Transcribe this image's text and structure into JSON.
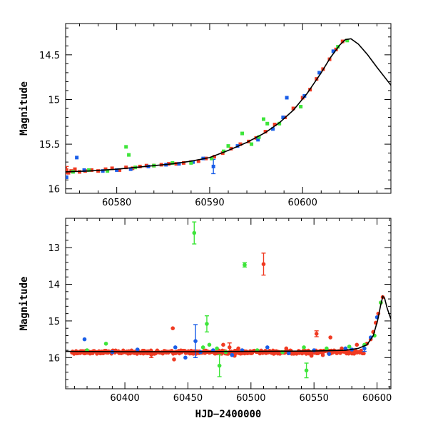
{
  "chart_data": [
    {
      "type": "scatter",
      "panel": "top",
      "xlim": [
        60574.5,
        60609.5
      ],
      "ylim": [
        16.05,
        14.15
      ],
      "y_inverted": true,
      "ylabel": "Magnitude",
      "xlabel": "",
      "xticks": [
        60580,
        60590,
        60600
      ],
      "yticks": [
        14.5,
        15,
        15.5,
        16
      ],
      "ytick_labels": [
        "14.5",
        "15",
        "15.5",
        "16"
      ],
      "colors": {
        "red": "#f03a22",
        "blue": "#1a5ee8",
        "green": "#3ee53a",
        "model": "#000000"
      },
      "model_curve": {
        "x": [
          60574.5,
          60577,
          60580,
          60583,
          60586,
          60588,
          60590,
          60592,
          60594,
          60596,
          60597.5,
          60599,
          60600.5,
          60602,
          60603,
          60604,
          60604.6,
          60605.2,
          60606,
          60607,
          60608,
          60609.5
        ],
        "y": [
          15.81,
          15.8,
          15.78,
          15.75,
          15.72,
          15.69,
          15.65,
          15.57,
          15.48,
          15.37,
          15.26,
          15.12,
          14.93,
          14.7,
          14.53,
          14.39,
          14.33,
          14.32,
          14.38,
          14.5,
          14.64,
          14.84
        ]
      },
      "series": [
        {
          "name": "",
          "color": "red",
          "x": [
            60574.6,
            60574.8,
            60575.1,
            60575.5,
            60576.0,
            60576.6,
            60577.3,
            60578.0,
            60578.8,
            60579.5,
            60580.3,
            60581.0,
            60581.7,
            60582.5,
            60583.2,
            60584.0,
            60584.8,
            60585.6,
            60586.4,
            60587.2,
            60588.0,
            60588.8,
            60589.6,
            60590.5,
            60591.4,
            60592.3,
            60593.3,
            60594.2,
            60595.0,
            60596.0,
            60597.0,
            60598.1,
            60599.0,
            60600.0,
            60600.8,
            60601.5,
            60602.2,
            60602.9,
            60603.6,
            60604.3
          ],
          "y": [
            15.79,
            15.82,
            15.8,
            15.78,
            15.81,
            15.8,
            15.79,
            15.8,
            15.78,
            15.77,
            15.79,
            15.76,
            15.77,
            15.75,
            15.74,
            15.74,
            15.73,
            15.72,
            15.72,
            15.71,
            15.7,
            15.69,
            15.66,
            15.64,
            15.6,
            15.55,
            15.5,
            15.47,
            15.43,
            15.36,
            15.28,
            15.2,
            15.1,
            14.98,
            14.89,
            14.77,
            14.66,
            14.55,
            14.44,
            14.35
          ],
          "errors": [
            0.04,
            0.0,
            0.0,
            0.0,
            0.0,
            0.0,
            0.0,
            0.0,
            0.0,
            0.0,
            0.0,
            0.0,
            0.0,
            0.0,
            0.0,
            0.0,
            0.0,
            0.0,
            0.0,
            0.0,
            0.0,
            0.0,
            0.0,
            0.0,
            0.0,
            0.0,
            0.0,
            0.0,
            0.0,
            0.0,
            0.0,
            0.0,
            0.0,
            0.0,
            0.0,
            0.0,
            0.0,
            0.0,
            0.0,
            0.0
          ]
        },
        {
          "name": "",
          "color": "blue",
          "x": [
            60574.6,
            60575.7,
            60576.5,
            60578.5,
            60580.0,
            60581.5,
            60583.4,
            60585.3,
            60586.7,
            60588.2,
            60589.3,
            60590.4,
            60593.0,
            60595.2,
            60596.8,
            60597.9,
            60598.3,
            60600.2,
            60601.8,
            60603.3
          ],
          "y": [
            15.87,
            15.65,
            15.79,
            15.8,
            15.79,
            15.78,
            15.75,
            15.73,
            15.72,
            15.7,
            15.66,
            15.75,
            15.52,
            15.45,
            15.33,
            15.2,
            14.98,
            14.96,
            14.7,
            14.46
          ],
          "errors": [
            0.0,
            0.0,
            0.0,
            0.0,
            0.0,
            0.0,
            0.0,
            0.0,
            0.0,
            0.0,
            0.0,
            0.08,
            0.0,
            0.0,
            0.0,
            0.0,
            0.0,
            0.0,
            0.0,
            0.0
          ]
        },
        {
          "name": "",
          "color": "green",
          "x": [
            60575.3,
            60577.0,
            60579.0,
            60581.0,
            60581.3,
            60582.0,
            60584.0,
            60586.0,
            60588.0,
            60590.2,
            60591.5,
            60592.0,
            60593.5,
            60594.5,
            60595.3,
            60595.8,
            60596.2,
            60597.5,
            60599.8,
            60603.8,
            60604.8
          ],
          "y": [
            15.81,
            15.79,
            15.8,
            15.53,
            15.62,
            15.76,
            15.74,
            15.71,
            15.71,
            15.66,
            15.58,
            15.52,
            15.38,
            15.5,
            15.42,
            15.22,
            15.27,
            15.27,
            15.08,
            14.41,
            14.34
          ],
          "errors": [
            0.0,
            0.0,
            0.0,
            0.0,
            0.0,
            0.0,
            0.0,
            0.0,
            0.0,
            0.0,
            0.0,
            0.0,
            0.0,
            0.0,
            0.0,
            0.0,
            0.0,
            0.0,
            0.0,
            0.0,
            0.0
          ]
        }
      ]
    },
    {
      "type": "scatter",
      "panel": "bottom",
      "xlim": [
        60353,
        60611
      ],
      "ylim": [
        16.85,
        12.2
      ],
      "y_inverted": true,
      "ylabel": "Magnitude",
      "xlabel": "HJD−2400000",
      "xticks": [
        60400,
        60450,
        60500,
        60550,
        60600
      ],
      "yticks": [
        13,
        14,
        15,
        16
      ],
      "ytick_labels": [
        "13",
        "14",
        "15",
        "16"
      ],
      "colors": {
        "red": "#f03a22",
        "blue": "#1a5ee8",
        "green": "#3ee53a",
        "model": "#000000"
      },
      "model_curve": {
        "x": [
          60353,
          60400,
          60450,
          60500,
          60550,
          60575,
          60585,
          60592,
          60597,
          60600.5,
          60603,
          60604.6,
          60606,
          60608,
          60611
        ],
        "y": [
          15.83,
          15.84,
          15.84,
          15.83,
          15.82,
          15.8,
          15.75,
          15.65,
          15.4,
          14.98,
          14.55,
          14.33,
          14.38,
          14.65,
          14.95
        ]
      },
      "band": {
        "color": "red",
        "x_start": 60358,
        "x_end": 60590,
        "level": 15.85,
        "jitter": 0.05
      },
      "series": [
        {
          "name": "",
          "color": "red",
          "x": [
            60438,
            60439,
            60421,
            60478,
            60483,
            60485,
            60487,
            60490,
            60510,
            60528,
            60548,
            60552,
            60557,
            60563,
            60572,
            60584,
            60592,
            60595,
            60597,
            60599,
            60601,
            60603,
            60604.5
          ],
          "y": [
            15.2,
            16.05,
            15.92,
            15.65,
            15.72,
            15.92,
            15.95,
            15.75,
            13.45,
            15.75,
            15.95,
            15.35,
            15.93,
            15.45,
            15.75,
            15.65,
            15.62,
            15.5,
            15.3,
            15.05,
            14.8,
            14.5,
            14.35
          ],
          "errors": [
            0.0,
            0.0,
            0.08,
            0.0,
            0.12,
            0.0,
            0.0,
            0.0,
            0.3,
            0.0,
            0.0,
            0.08,
            0.0,
            0.0,
            0.0,
            0.0,
            0.0,
            0.0,
            0.0,
            0.0,
            0.0,
            0.0,
            0.0
          ]
        },
        {
          "name": "",
          "color": "blue",
          "x": [
            60368,
            60390,
            60410,
            60440,
            60448,
            60456,
            60460,
            60470,
            60485,
            60493,
            60513,
            60530,
            60550,
            60562,
            60575,
            60580,
            60590,
            60595,
            60600
          ],
          "y": [
            15.5,
            15.85,
            15.78,
            15.72,
            16.0,
            15.55,
            15.85,
            15.8,
            15.93,
            15.8,
            15.72,
            15.88,
            15.8,
            15.9,
            15.75,
            15.78,
            15.75,
            15.45,
            14.9
          ],
          "errors": [
            0.0,
            0.0,
            0.0,
            0.0,
            0.0,
            0.45,
            0.0,
            0.0,
            0.0,
            0.0,
            0.0,
            0.0,
            0.0,
            0.0,
            0.0,
            0.0,
            0.08,
            0.0,
            0.0
          ]
        },
        {
          "name": "",
          "color": "green",
          "x": [
            60370,
            60385,
            60455,
            60462,
            60465,
            60467,
            60473,
            60475,
            60480,
            60495,
            60505,
            60525,
            60542,
            60544,
            60560,
            60578,
            60590,
            60598,
            60603
          ],
          "y": [
            15.8,
            15.62,
            12.6,
            15.72,
            15.08,
            15.65,
            15.75,
            16.22,
            15.85,
            13.47,
            15.8,
            15.85,
            15.72,
            16.35,
            15.75,
            15.7,
            15.65,
            15.4,
            14.5
          ],
          "errors": [
            0.0,
            0.0,
            0.3,
            0.0,
            0.22,
            0.0,
            0.0,
            0.3,
            0.0,
            0.06,
            0.0,
            0.0,
            0.0,
            0.2,
            0.0,
            0.0,
            0.0,
            0.0,
            0.0
          ]
        }
      ]
    }
  ]
}
